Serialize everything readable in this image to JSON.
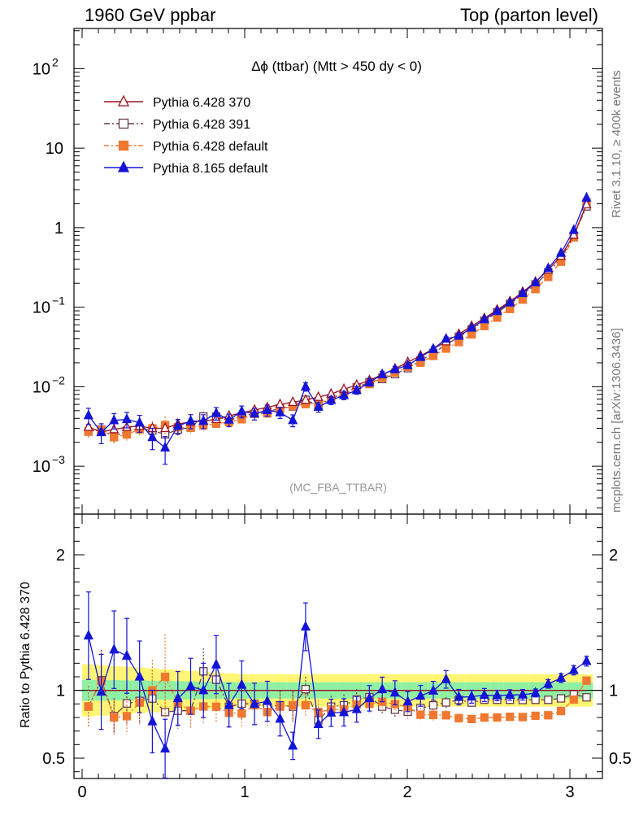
{
  "header": {
    "left": "1960 GeV ppbar",
    "right": "Top (parton level)"
  },
  "side_labels": {
    "rivet": "Rivet 3.1.10, ≥ 400k events",
    "mcplots": "mcplots.cern.ch [arXiv:1306.3436]"
  },
  "chart_data": {
    "type": "line",
    "title": "Δϕ (ttbar) (Mtt > 450 dy < 0)",
    "watermark": "(MC_FBA_TTBAR)",
    "x_ticks": [
      "0",
      "1",
      "2",
      "3"
    ],
    "xlim": [
      -0.05,
      3.2
    ],
    "top_panel": {
      "yscale": "log",
      "ylim": [
        0.00025,
        320
      ],
      "y_ticks": [
        {
          "value": 0.001,
          "base": "10",
          "exp": "−3"
        },
        {
          "value": 0.01,
          "base": "10",
          "exp": "−2"
        },
        {
          "value": 0.1,
          "base": "10",
          "exp": "−1"
        },
        {
          "value": 1,
          "base": "1",
          "exp": ""
        },
        {
          "value": 10,
          "base": "10",
          "exp": ""
        },
        {
          "value": 100,
          "base": "10",
          "exp": "2"
        }
      ]
    },
    "ratio_panel": {
      "ylabel": "Ratio to Pythia 6.428 370",
      "ylim": [
        0.35,
        2.3
      ],
      "y_ticks": [
        {
          "value": 0.5,
          "label": "0.5"
        },
        {
          "value": 1,
          "label": "1"
        },
        {
          "value": 2,
          "label": "2"
        }
      ],
      "band_inner_halfwidth": 0.06,
      "band_outer_halfwidth": 0.12
    },
    "x": [
      0.0393,
      0.1178,
      0.1963,
      0.2749,
      0.3534,
      0.432,
      0.5105,
      0.589,
      0.6676,
      0.7461,
      0.8247,
      0.9032,
      0.9817,
      1.0603,
      1.1388,
      1.2174,
      1.2959,
      1.3744,
      1.453,
      1.5315,
      1.6101,
      1.6886,
      1.7671,
      1.8457,
      1.9242,
      2.0028,
      2.0813,
      2.1598,
      2.2384,
      2.3169,
      2.3955,
      2.474,
      2.5525,
      2.6311,
      2.7096,
      2.7882,
      2.8667,
      2.9452,
      3.0238,
      3.1023
    ],
    "series": [
      {
        "name": "Pythia 6.428 370",
        "color": "#9b1020",
        "marker": "triangle-open",
        "dash": "",
        "values": [
          0.0031,
          0.0027,
          0.0029,
          0.0031,
          0.0032,
          0.003,
          0.003,
          0.0034,
          0.0036,
          0.0037,
          0.0039,
          0.0043,
          0.0047,
          0.0051,
          0.0055,
          0.006,
          0.0064,
          0.0068,
          0.0074,
          0.0081,
          0.0093,
          0.0105,
          0.012,
          0.0142,
          0.0168,
          0.0203,
          0.0245,
          0.0298,
          0.037,
          0.0458,
          0.0577,
          0.0725,
          0.0925,
          0.118,
          0.155,
          0.208,
          0.294,
          0.44,
          0.81,
          1.95
        ]
      },
      {
        "name": "Pythia 6.428 391",
        "color": "#6a3d4e",
        "marker": "square-open",
        "dash": "7,3,2,3",
        "values": [
          0.00273,
          0.0029,
          0.00235,
          0.0028,
          0.00295,
          0.00282,
          0.00252,
          0.00289,
          0.00306,
          0.00422,
          0.00421,
          0.00378,
          0.00424,
          0.00459,
          0.00484,
          0.00534,
          0.00563,
          0.00686,
          0.00577,
          0.00713,
          0.00828,
          0.00979,
          0.0114,
          0.0125,
          0.0144,
          0.0171,
          0.0213,
          0.0265,
          0.0337,
          0.0426,
          0.0525,
          0.0675,
          0.0861,
          0.1098,
          0.144,
          0.1935,
          0.2735,
          0.414,
          0.786,
          1.85
        ]
      },
      {
        "name": "Pythia 6.428 default",
        "color": "#f07830",
        "marker": "square-filled",
        "dash": "6,3,2,3",
        "values": [
          0.00273,
          0.00288,
          0.00232,
          0.00251,
          0.00291,
          0.003,
          0.0033,
          0.00309,
          0.00306,
          0.00326,
          0.00343,
          0.00359,
          0.0039,
          0.00454,
          0.00462,
          0.00528,
          0.0057,
          0.00605,
          0.00622,
          0.00696,
          0.008,
          0.0094,
          0.0108,
          0.013,
          0.0151,
          0.0178,
          0.0201,
          0.0244,
          0.0302,
          0.0364,
          0.0455,
          0.058,
          0.074,
          0.095,
          0.1245,
          0.169,
          0.24,
          0.373,
          0.755,
          2.09
        ]
      },
      {
        "name": "Pythia 8.165 default",
        "color": "#1414d8",
        "marker": "triangle-filled",
        "dash": "",
        "values": [
          0.00435,
          0.00267,
          0.00377,
          0.00389,
          0.00352,
          0.00231,
          0.00171,
          0.0032,
          0.00371,
          0.0037,
          0.00464,
          0.00383,
          0.00489,
          0.00459,
          0.00506,
          0.00474,
          0.00378,
          0.00999,
          0.00555,
          0.00676,
          0.00779,
          0.00903,
          0.0113,
          0.0143,
          0.0165,
          0.0186,
          0.0235,
          0.0297,
          0.04,
          0.0435,
          0.055,
          0.07,
          0.089,
          0.114,
          0.15,
          0.204,
          0.308,
          0.48,
          0.93,
          2.37
        ]
      }
    ],
    "rel_error_fraction": [
      0.23,
      0.28,
      0.22,
      0.22,
      0.24,
      0.3,
      0.38,
      0.21,
      0.2,
      0.2,
      0.18,
      0.18,
      0.17,
      0.17,
      0.16,
      0.16,
      0.17,
      0.12,
      0.14,
      0.12,
      0.12,
      0.11,
      0.1,
      0.09,
      0.09,
      0.08,
      0.08,
      0.07,
      0.06,
      0.06,
      0.05,
      0.05,
      0.04,
      0.04,
      0.04,
      0.03,
      0.03,
      0.03,
      0.03,
      0.03
    ]
  }
}
